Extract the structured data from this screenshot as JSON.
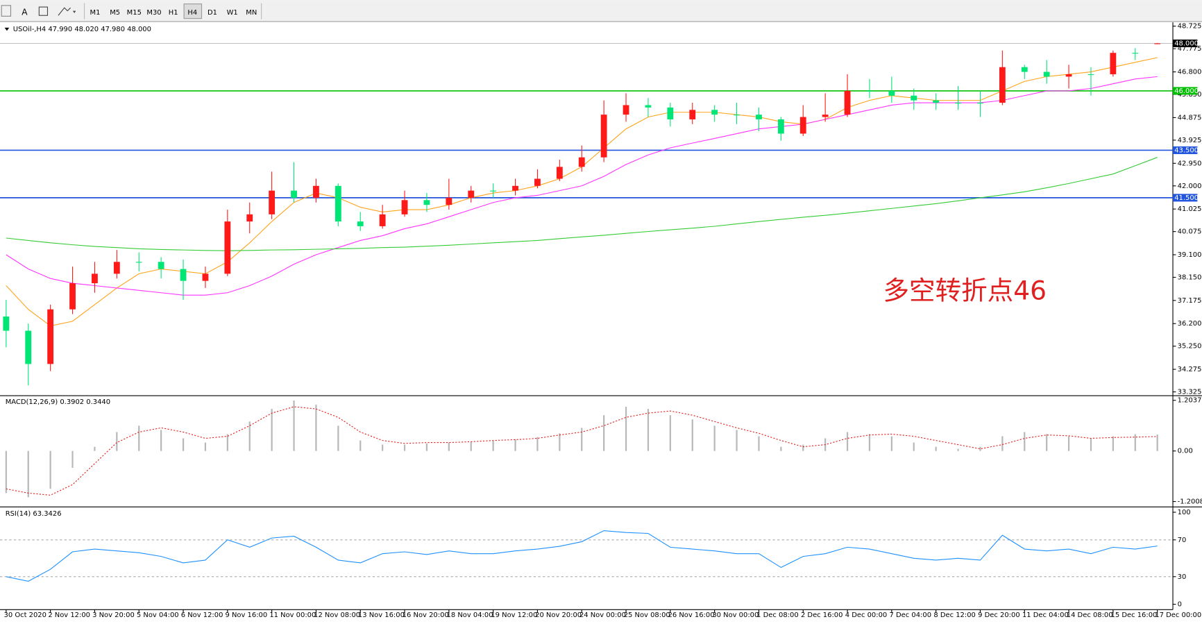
{
  "toolbar": {
    "font_button": "A",
    "timeframes": [
      "M1",
      "M5",
      "M15",
      "M30",
      "H1",
      "H4",
      "D1",
      "W1",
      "MN"
    ],
    "active": "H4"
  },
  "chart_data": [
    {
      "type": "candlestick",
      "title": "USOil-,H4  47.990 48.020 47.980 48.000",
      "annotation": "多空转折点46",
      "categories": [
        "30 Oct 2020",
        null,
        "2 Nov 12:00",
        null,
        "3 Nov 20:00",
        null,
        "5 Nov 04:00",
        null,
        "6 Nov 12:00",
        null,
        "9 Nov 16:00",
        null,
        "11 Nov 00:00",
        null,
        "12 Nov 08:00",
        null,
        "13 Nov 16:00",
        null,
        "16 Nov 20:00",
        null,
        "18 Nov 04:00",
        null,
        "19 Nov 12:00",
        null,
        "20 Nov 20:00",
        null,
        "24 Nov 00:00",
        null,
        "25 Nov 08:00",
        null,
        "26 Nov 16:00",
        null,
        "30 Nov 00:00",
        null,
        "1 Dec 08:00",
        null,
        "2 Dec 16:00",
        null,
        "4 Dec 00:00",
        null,
        "7 Dec 04:00",
        null,
        "8 Dec 12:00",
        null,
        "9 Dec 20:00",
        null,
        "11 Dec 04:00",
        null,
        "14 Dec 08:00",
        null,
        "15 Dec 16:00",
        null,
        "17 Dec 00:00"
      ],
      "open": [
        36.5,
        35.9,
        34.5,
        36.8,
        37.9,
        38.3,
        38.8,
        38.8,
        38.5,
        38.0,
        38.3,
        40.5,
        40.8,
        41.8,
        41.5,
        42.0,
        40.5,
        40.3,
        40.8,
        41.4,
        41.2,
        41.5,
        41.8,
        41.8,
        42.0,
        42.3,
        42.8,
        43.2,
        45.0,
        45.4,
        45.3,
        44.8,
        45.2,
        45.0,
        45.0,
        44.8,
        44.2,
        44.9,
        45.0,
        46.0,
        46.0,
        45.8,
        45.6,
        45.5,
        45.5,
        45.5,
        47.0,
        46.8,
        46.6,
        46.7,
        46.7,
        47.6,
        47.99
      ],
      "high": [
        37.2,
        36.2,
        37.0,
        38.6,
        38.8,
        39.3,
        39.2,
        39.0,
        38.9,
        38.6,
        41.0,
        41.3,
        42.6,
        43.0,
        42.3,
        42.1,
        40.9,
        41.2,
        41.8,
        41.7,
        42.3,
        42.0,
        42.1,
        42.3,
        42.7,
        43.1,
        43.7,
        45.6,
        45.9,
        45.7,
        45.5,
        45.5,
        45.4,
        45.5,
        45.3,
        44.9,
        45.4,
        45.9,
        46.7,
        46.5,
        46.6,
        46.1,
        45.9,
        46.2,
        46.0,
        47.7,
        47.1,
        47.3,
        47.1,
        47.0,
        47.7,
        47.8,
        48.02
      ],
      "low": [
        35.2,
        33.6,
        34.2,
        36.6,
        37.5,
        38.1,
        38.4,
        38.1,
        37.2,
        37.7,
        38.2,
        40.0,
        40.6,
        41.3,
        41.3,
        40.3,
        40.1,
        40.2,
        40.7,
        40.9,
        41.0,
        41.3,
        41.5,
        41.6,
        41.9,
        42.2,
        42.6,
        43.0,
        44.7,
        44.9,
        44.5,
        44.6,
        44.7,
        44.6,
        44.3,
        43.9,
        44.1,
        44.7,
        44.9,
        45.7,
        45.5,
        45.2,
        45.2,
        45.2,
        44.9,
        45.4,
        46.5,
        46.3,
        46.1,
        45.8,
        46.6,
        47.3,
        47.98
      ],
      "close": [
        35.9,
        34.5,
        36.8,
        37.9,
        38.3,
        38.8,
        38.8,
        38.5,
        38.0,
        38.3,
        40.5,
        40.8,
        41.8,
        41.5,
        42.0,
        40.5,
        40.3,
        40.8,
        41.4,
        41.2,
        41.5,
        41.8,
        41.8,
        42.0,
        42.3,
        42.8,
        43.2,
        45.0,
        45.4,
        45.3,
        44.8,
        45.2,
        45.0,
        45.0,
        44.8,
        44.2,
        44.9,
        45.0,
        46.0,
        46.0,
        45.8,
        45.6,
        45.5,
        45.5,
        45.5,
        47.0,
        46.8,
        46.6,
        46.7,
        46.7,
        47.6,
        47.6,
        48.0
      ],
      "up_color": "#ff1a1a",
      "down_color": "#00e676",
      "lines": [
        {
          "color": "#ffa31a",
          "values": [
            37.8,
            36.8,
            36.1,
            36.3,
            37.0,
            37.7,
            38.3,
            38.5,
            38.4,
            38.3,
            38.8,
            39.6,
            40.5,
            41.3,
            41.7,
            41.5,
            41.1,
            40.9,
            41.0,
            41.0,
            41.2,
            41.5,
            41.7,
            41.8,
            42.0,
            42.3,
            42.8,
            43.6,
            44.4,
            44.9,
            45.1,
            45.1,
            45.1,
            45.0,
            44.9,
            44.7,
            44.6,
            44.8,
            45.3,
            45.6,
            45.8,
            45.7,
            45.6,
            45.6,
            45.6,
            46.0,
            46.4,
            46.6,
            46.7,
            46.8,
            47.0,
            47.2,
            47.4
          ]
        },
        {
          "color": "#ff33ff",
          "values": [
            39.1,
            38.5,
            38.1,
            37.9,
            37.8,
            37.7,
            37.6,
            37.5,
            37.4,
            37.4,
            37.5,
            37.8,
            38.2,
            38.7,
            39.1,
            39.4,
            39.7,
            39.9,
            40.2,
            40.4,
            40.7,
            41.0,
            41.3,
            41.5,
            41.6,
            41.8,
            42.0,
            42.4,
            42.9,
            43.3,
            43.6,
            43.8,
            44.0,
            44.2,
            44.4,
            44.5,
            44.6,
            44.8,
            45.0,
            45.2,
            45.4,
            45.5,
            45.5,
            45.5,
            45.5,
            45.6,
            45.8,
            46.0,
            46.0,
            46.1,
            46.3,
            46.5,
            46.6
          ]
        },
        {
          "color": "#33cc33",
          "values": [
            39.8,
            39.7,
            39.6,
            39.52,
            39.45,
            39.4,
            39.35,
            39.32,
            39.3,
            39.28,
            39.27,
            39.28,
            39.3,
            39.31,
            39.33,
            39.35,
            39.37,
            39.4,
            39.42,
            39.46,
            39.5,
            39.55,
            39.6,
            39.65,
            39.7,
            39.78,
            39.85,
            39.92,
            40.0,
            40.08,
            40.15,
            40.22,
            40.3,
            40.4,
            40.5,
            40.59,
            40.68,
            40.76,
            40.85,
            40.95,
            41.05,
            41.15,
            41.25,
            41.37,
            41.5,
            41.62,
            41.75,
            41.92,
            42.1,
            42.3,
            42.5,
            42.85,
            43.2
          ]
        }
      ],
      "levels": [
        {
          "value": 48,
          "label": "48.000",
          "color": "#000000"
        },
        {
          "value": 46,
          "label": "46.000",
          "color": "#00c000"
        },
        {
          "value": 43.5,
          "label": "43.500",
          "color": "#2255dd"
        },
        {
          "value": 41.5,
          "label": "41.500",
          "color": "#2255dd"
        }
      ],
      "ylim": [
        33.325,
        48.725
      ],
      "yticks": [
        48.725,
        47.775,
        {
          "value": 46.8,
          "label": "46.800"
        },
        {
          "value": 45.85,
          "label": "45.850"
        },
        44.875,
        43.925,
        {
          "value": 42.95,
          "label": "42.950"
        },
        {
          "value": 42,
          "label": "42.000"
        },
        41.025,
        40.075,
        {
          "value": 39.1,
          "label": "39.100"
        },
        {
          "value": 38.15,
          "label": "38.150"
        },
        37.175,
        {
          "value": 36.2,
          "label": "36.200"
        },
        {
          "value": 35.25,
          "label": "35.250"
        },
        34.275,
        33.325
      ]
    },
    {
      "type": "macd",
      "title": "MACD(12,26,9) 0.3902 0.3440",
      "series": [
        {
          "color": "#b8b8b8",
          "values": [
            -1.0,
            -1.1,
            -0.9,
            -0.4,
            0.1,
            0.45,
            0.6,
            0.5,
            0.3,
            0.2,
            0.4,
            0.7,
            1.0,
            1.2,
            1.1,
            0.6,
            0.25,
            0.15,
            0.15,
            0.18,
            0.2,
            0.22,
            0.24,
            0.28,
            0.33,
            0.42,
            0.55,
            0.85,
            1.05,
            1.0,
            0.85,
            0.75,
            0.6,
            0.5,
            0.35,
            0.1,
            0.15,
            0.3,
            0.45,
            0.4,
            0.35,
            0.2,
            0.1,
            0.05,
            0.1,
            0.35,
            0.45,
            0.4,
            0.35,
            0.3,
            0.35,
            0.4,
            0.39
          ]
        },
        {
          "color": "#e02020",
          "values": [
            -0.9,
            -1.0,
            -1.05,
            -0.8,
            -0.3,
            0.2,
            0.45,
            0.55,
            0.45,
            0.3,
            0.35,
            0.6,
            0.9,
            1.05,
            1.0,
            0.8,
            0.45,
            0.25,
            0.18,
            0.2,
            0.2,
            0.22,
            0.25,
            0.27,
            0.3,
            0.38,
            0.45,
            0.6,
            0.8,
            0.9,
            0.95,
            0.85,
            0.7,
            0.55,
            0.42,
            0.25,
            0.1,
            0.15,
            0.3,
            0.38,
            0.4,
            0.35,
            0.25,
            0.15,
            0.05,
            0.15,
            0.3,
            0.38,
            0.36,
            0.3,
            0.32,
            0.33,
            0.344
          ]
        }
      ],
      "ylim": [
        -1.2008,
        1.2037
      ],
      "yticks": [
        1.2037,
        {
          "value": 0,
          "label": "0.00"
        },
        -1.2008
      ]
    },
    {
      "type": "line",
      "title": "RSI(14) 63.3426",
      "series": [
        {
          "color": "#1e90ff",
          "values": [
            30,
            25,
            38,
            57,
            60,
            58,
            56,
            52,
            45,
            48,
            70,
            62,
            72,
            74,
            62,
            48,
            45,
            55,
            57,
            54,
            58,
            55,
            55,
            58,
            60,
            63,
            68,
            80,
            78,
            77,
            62,
            60,
            58,
            55,
            55,
            40,
            52,
            55,
            62,
            60,
            55,
            50,
            48,
            50,
            48,
            75,
            60,
            58,
            60,
            55,
            62,
            60,
            63.34
          ]
        }
      ],
      "levels": [
        70,
        30
      ],
      "ylim": [
        0,
        100
      ],
      "yticks": [
        100,
        70,
        30,
        0
      ]
    }
  ]
}
